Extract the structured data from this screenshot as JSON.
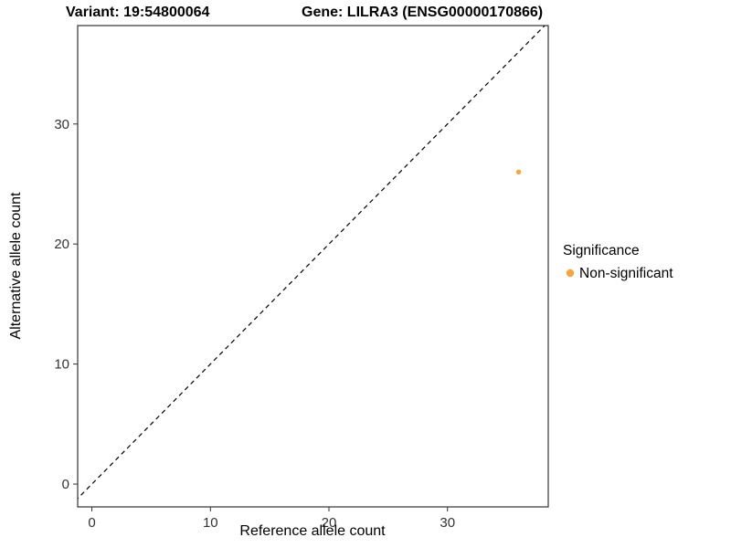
{
  "chart_data": {
    "type": "scatter",
    "title_left": "Variant: 19:54800064",
    "title_right": "Gene: LILRA3 (ENSG00000170866)",
    "xlabel": "Reference allele count",
    "ylabel": "Alternative allele count",
    "xlim": [
      -1.2,
      38.5
    ],
    "ylim": [
      -1.9,
      38.2
    ],
    "xticks": [
      0,
      10,
      20,
      30
    ],
    "yticks": [
      0,
      10,
      20,
      30
    ],
    "grid": false,
    "identity_line": {
      "style": "dashed",
      "color": "#000000",
      "equation": "y = x"
    },
    "series": [
      {
        "name": "Non-significant",
        "color": "#F9A33B",
        "points": [
          {
            "x": 36,
            "y": 26
          }
        ]
      }
    ],
    "legend": {
      "title": "Significance",
      "position": "right",
      "entries": [
        {
          "label": "Non-significant",
          "color": "#F9A33B"
        }
      ]
    }
  },
  "colors": {
    "panel_border": "#333333",
    "axis_text": "#333333",
    "title_text": "#000000",
    "point": "#F9A33B"
  }
}
